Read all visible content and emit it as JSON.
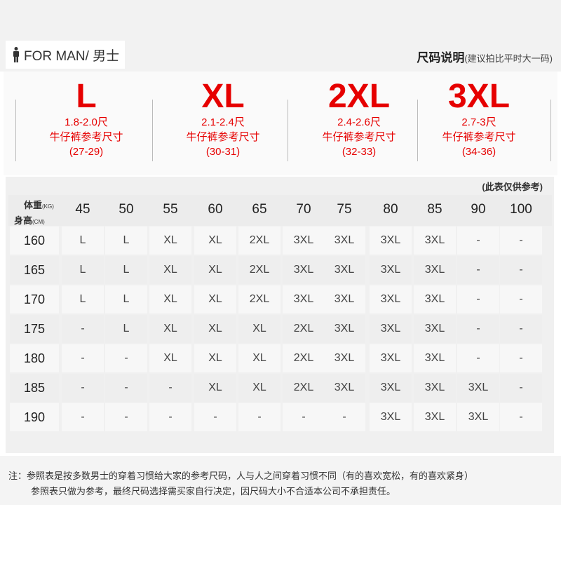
{
  "header": {
    "gender_label": "FOR MAN/ 男士",
    "guide_title": "尺码说明",
    "guide_subtitle": "(建议拍比平时大一码)",
    "icon": "man-icon"
  },
  "sizes": [
    {
      "size": "L",
      "waist": "1.8-2.0尺",
      "label": "牛仔裤参考尺寸",
      "range": "(27-29)"
    },
    {
      "size": "XL",
      "waist": "2.1-2.4尺",
      "label": "牛仔裤参考尺寸",
      "range": "(30-31)"
    },
    {
      "size": "2XL",
      "waist": "2.4-2.6尺",
      "label": "牛仔裤参考尺寸",
      "range": "(32-33)"
    },
    {
      "size": "3XL",
      "waist": "2.7-3尺",
      "label": "牛仔裤参考尺寸",
      "range": "(34-36)"
    }
  ],
  "accent_color": "#e60000",
  "table": {
    "reference_note": "(此表仅供参考)",
    "weight_label": "体重",
    "weight_unit": "(KG)",
    "height_label": "身高",
    "height_unit": "(CM)",
    "weights": [
      "45",
      "50",
      "55",
      "60",
      "65",
      "70",
      "75",
      "80",
      "85",
      "90",
      "100"
    ],
    "rows": [
      {
        "height": "160",
        "cells": [
          "L",
          "L",
          "XL",
          "XL",
          "2XL",
          "3XL",
          "3XL",
          "3XL",
          "3XL",
          "-",
          "-"
        ]
      },
      {
        "height": "165",
        "cells": [
          "L",
          "L",
          "XL",
          "XL",
          "2XL",
          "3XL",
          "3XL",
          "3XL",
          "3XL",
          "-",
          "-"
        ]
      },
      {
        "height": "170",
        "cells": [
          "L",
          "L",
          "XL",
          "XL",
          "2XL",
          "3XL",
          "3XL",
          "3XL",
          "3XL",
          "-",
          "-"
        ]
      },
      {
        "height": "175",
        "cells": [
          "-",
          "L",
          "XL",
          "XL",
          "XL",
          "2XL",
          "3XL",
          "3XL",
          "3XL",
          "-",
          "-"
        ]
      },
      {
        "height": "180",
        "cells": [
          "-",
          "-",
          "XL",
          "XL",
          "XL",
          "2XL",
          "3XL",
          "3XL",
          "3XL",
          "-",
          "-"
        ]
      },
      {
        "height": "185",
        "cells": [
          "-",
          "-",
          "-",
          "XL",
          "XL",
          "2XL",
          "3XL",
          "3XL",
          "3XL",
          "3XL",
          "-"
        ]
      },
      {
        "height": "190",
        "cells": [
          "-",
          "-",
          "-",
          "-",
          "-",
          "-",
          "-",
          "3XL",
          "3XL",
          "3XL",
          "-"
        ]
      }
    ]
  },
  "footer": {
    "note_line1": "注：参照表是按多数男士的穿着习惯给大家的参考尺码，人与人之间穿着习惯不同（有的喜欢宽松，有的喜欢紧身）",
    "note_line2": "参照表只做为参考，最终尺码选择需买家自行决定，因尺码大小不合适本公司不承担责任。"
  }
}
